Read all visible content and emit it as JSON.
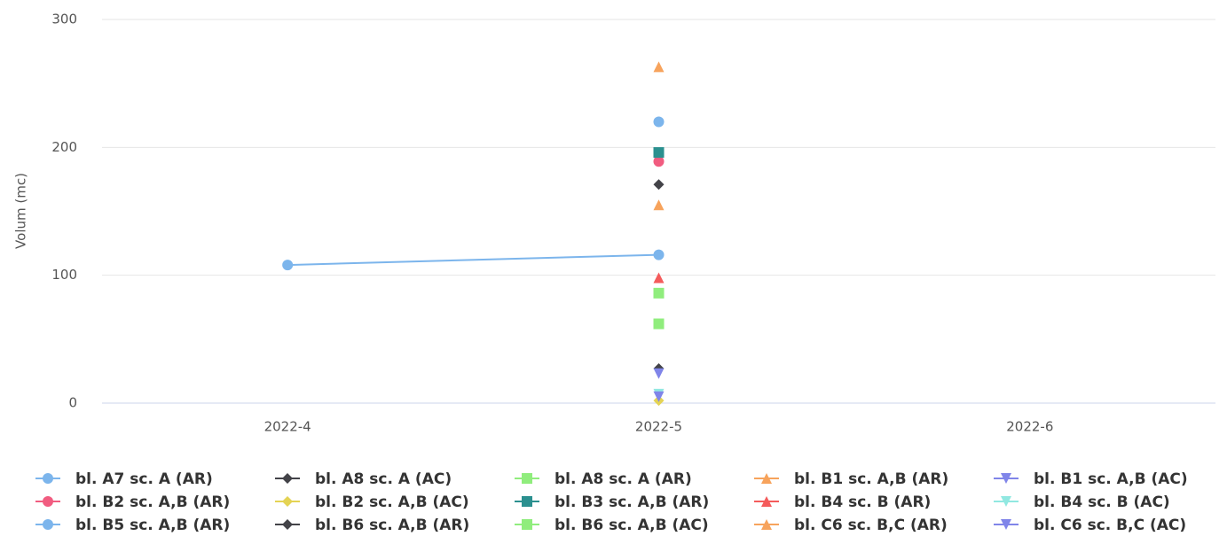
{
  "chart_data": {
    "type": "line",
    "y_axis_label": "Volum (mc)",
    "categories": [
      "2022-4",
      "2022-5",
      "2022-6"
    ],
    "ylim": [
      0,
      300
    ],
    "yticks": [
      0,
      100,
      200,
      300
    ],
    "grid": true,
    "series": [
      {
        "name": "bl. A7 sc. A (AR)",
        "color": "#7cb5ec",
        "marker": "circle",
        "values": [
          108,
          116,
          null
        ]
      },
      {
        "name": "bl. A8 sc. A (AC)",
        "color": "#434348",
        "marker": "diamond",
        "values": [
          null,
          27,
          null
        ]
      },
      {
        "name": "bl. A8 sc. A (AR)",
        "color": "#90ed7d",
        "marker": "square",
        "values": [
          null,
          86,
          null
        ]
      },
      {
        "name": "bl. B1 sc. A,B (AR)",
        "color": "#f7a35c",
        "marker": "triangle",
        "values": [
          null,
          263,
          null
        ]
      },
      {
        "name": "bl. B1 sc. A,B (AC)",
        "color": "#8085e9",
        "marker": "triangle-down",
        "values": [
          null,
          23,
          null
        ]
      },
      {
        "name": "bl. B2 sc. A,B (AR)",
        "color": "#f15c80",
        "marker": "circle",
        "values": [
          null,
          189,
          null
        ]
      },
      {
        "name": "bl. B2 sc. A,B (AC)",
        "color": "#e4d354",
        "marker": "diamond",
        "values": [
          null,
          2,
          null
        ]
      },
      {
        "name": "bl. B3 sc. A,B (AR)",
        "color": "#2b908f",
        "marker": "square",
        "values": [
          null,
          196,
          null
        ]
      },
      {
        "name": "bl. B4 sc. B (AR)",
        "color": "#f45b5b",
        "marker": "triangle",
        "values": [
          null,
          98,
          null
        ]
      },
      {
        "name": "bl. B4 sc. B (AC)",
        "color": "#91e8e1",
        "marker": "triangle-down",
        "values": [
          null,
          7,
          null
        ]
      },
      {
        "name": "bl. B5 sc. A,B (AR)",
        "color": "#7cb5ec",
        "marker": "circle",
        "values": [
          null,
          220,
          null
        ]
      },
      {
        "name": "bl. B6 sc. A,B (AR)",
        "color": "#434348",
        "marker": "diamond",
        "values": [
          null,
          171,
          null
        ]
      },
      {
        "name": "bl. B6 sc. A,B (AC)",
        "color": "#90ed7d",
        "marker": "square",
        "values": [
          null,
          62,
          null
        ]
      },
      {
        "name": "bl. C6 sc. B,C (AR)",
        "color": "#f7a35c",
        "marker": "triangle",
        "values": [
          null,
          155,
          null
        ]
      },
      {
        "name": "bl. C6 sc. B,C (AC)",
        "color": "#8085e9",
        "marker": "triangle-down",
        "values": [
          null,
          5,
          null
        ]
      }
    ]
  }
}
